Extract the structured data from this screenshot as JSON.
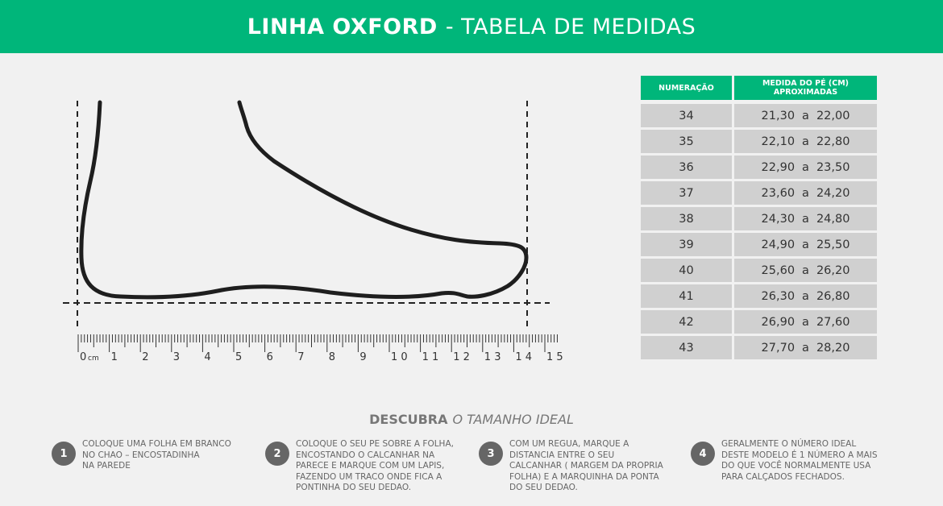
{
  "header": {
    "title_bold": "LINHA OXFORD",
    "title_rest": "- TABELA DE MEDIDAS"
  },
  "table": {
    "col_numeracao": "NUMERAÇÃO",
    "col_medida": "MEDIDA DO PÉ (CM)\nAPROXIMADAS",
    "separator": "a",
    "rows": [
      {
        "size": "34",
        "from": "21,30",
        "to": "22,00"
      },
      {
        "size": "35",
        "from": "22,10",
        "to": "22,80"
      },
      {
        "size": "36",
        "from": "22,90",
        "to": "23,50"
      },
      {
        "size": "37",
        "from": "23,60",
        "to": "24,20"
      },
      {
        "size": "38",
        "from": "24,30",
        "to": "24,80"
      },
      {
        "size": "39",
        "from": "24,90",
        "to": "25,50"
      },
      {
        "size": "40",
        "from": "25,60",
        "to": "26,20"
      },
      {
        "size": "41",
        "from": "26,30",
        "to": "26,80"
      },
      {
        "size": "42",
        "from": "26,90",
        "to": "27,60"
      },
      {
        "size": "43",
        "from": "27,70",
        "to": "28,20"
      }
    ]
  },
  "ruler": {
    "unit": "cm",
    "labels": [
      "0",
      "1",
      "2",
      "3",
      "4",
      "5",
      "6",
      "7",
      "8",
      "9",
      "10",
      "11",
      "12",
      "13",
      "14",
      "15"
    ],
    "max_cm": 15
  },
  "subtitle": {
    "bold": "DESCUBRA",
    "italic": "O TAMANHO IDEAL"
  },
  "steps": [
    {
      "number": "1",
      "text": "COLOQUE UMA FOLHA EM BRANCO\nNO CHAO – ENCOSTADINHA\nNA  PAREDE"
    },
    {
      "number": "2",
      "text": "COLOQUE O SEU PE SOBRE A FOLHA,\nENCOSTANDO O CALCANHAR NA\nPARECE E MARQUE COM UM LAPIS,\nFAZENDO UM TRACO ONDE FICA A\nPONTINHA DO SEU DEDAO."
    },
    {
      "number": "3",
      "text": "COM UM REGUA, MARQUE A\nDISTANCIA ENTRE O SEU\nCALCANHAR ( MARGEM DA PROPRIA\nFOLHA) E A MARQUINHA DA PONTA\nDO SEU DEDAO."
    },
    {
      "number": "4",
      "text": "GERALMENTE O NÚMERO IDEAL\nDESTE MODELO É 1 NÚMERO A MAIS\nDO QUE VOCÊ NORMALMENTE USA\nPARA CALÇADOS FECHADOS."
    }
  ],
  "colors": {
    "accent": "#00b67a",
    "cell": "#d0d0d0",
    "badge": "#666666"
  }
}
